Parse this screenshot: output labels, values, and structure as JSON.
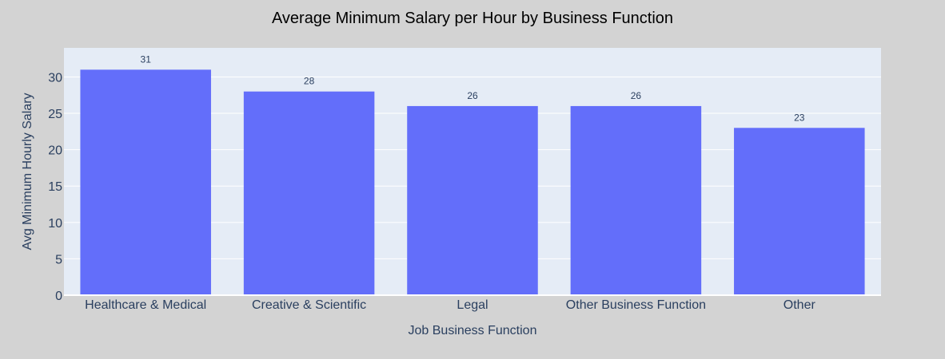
{
  "chart_data": {
    "type": "bar",
    "title": "Average Minimum Salary per Hour by Business Function",
    "xlabel": "Job Business Function",
    "ylabel": "Avg Minimum Hourly Salary",
    "categories": [
      "Healthcare & Medical",
      "Creative & Scientific",
      "Legal",
      "Other Business Function",
      "Other"
    ],
    "values": [
      31,
      28,
      26,
      26,
      23
    ],
    "data_labels": [
      "31",
      "28",
      "26",
      "26",
      "23"
    ],
    "ylim": [
      0,
      34
    ],
    "yticks": [
      0,
      5,
      10,
      15,
      20,
      25,
      30
    ],
    "grid": true,
    "legend": "none"
  },
  "colors": {
    "page_background": "#d3d3d3",
    "plot_background": "#e5ecf6",
    "bar": "#636efa",
    "gridline": "#ffffff",
    "text": "#2a3f5f",
    "title": "#000000"
  }
}
